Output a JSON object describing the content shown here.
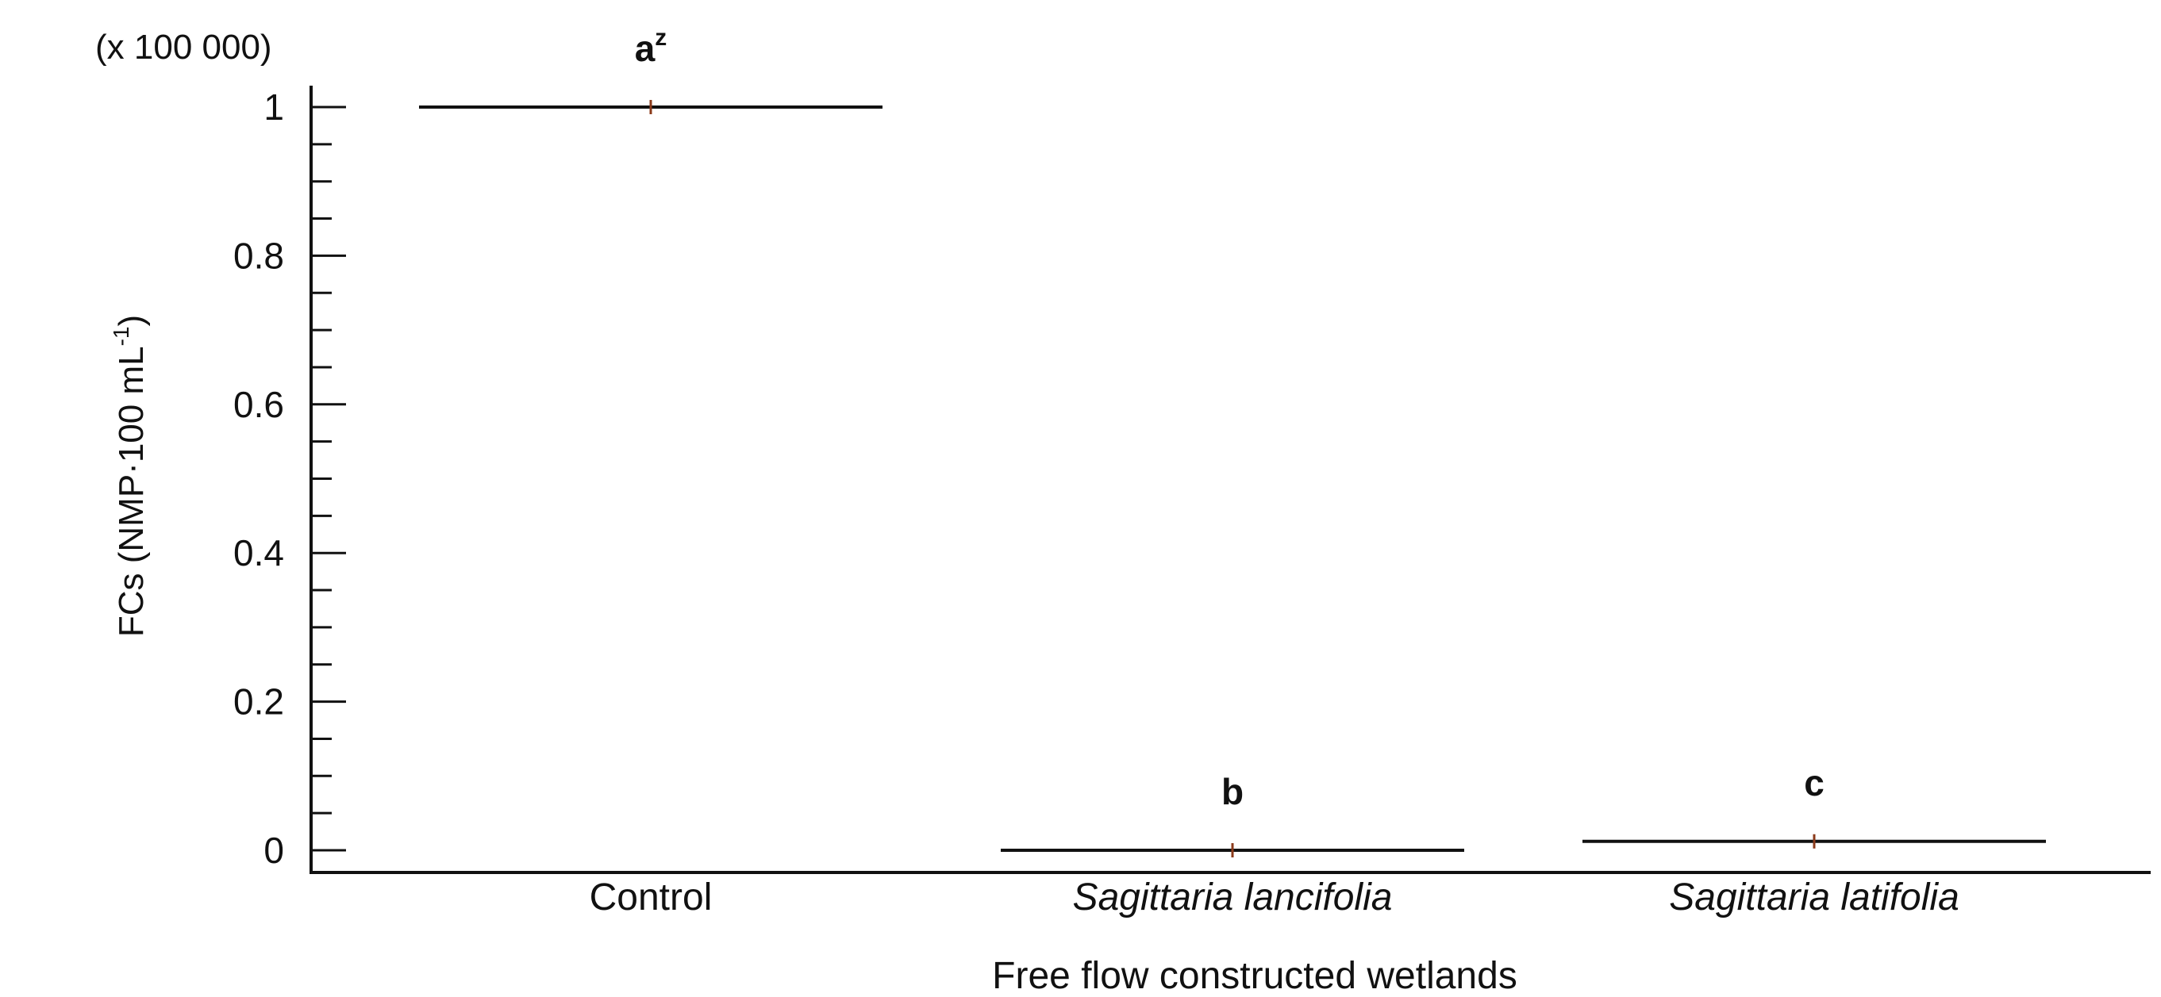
{
  "chart_data": {
    "type": "scatter",
    "multiplier_label": "(x 100 000)",
    "ylabel": "FCs (NMP·100 mL",
    "ylabel_sup": "-1",
    "ylabel_close": ")",
    "xlabel": "Free flow constructed wetlands",
    "ylim": [
      0,
      1
    ],
    "yticks": [
      0,
      0.2,
      0.4,
      0.6,
      0.8,
      1
    ],
    "ytick_labels": [
      "0",
      "0.2",
      "0.4",
      "0.6",
      "0.8",
      "1"
    ],
    "categories": [
      {
        "label": "Control",
        "italic": false
      },
      {
        "label": "Sagittaria lancifolia",
        "italic": true
      },
      {
        "label": "Sagittaria latifolia",
        "italic": true
      }
    ],
    "values": [
      1.0,
      0.0,
      0.012
    ],
    "letters": [
      {
        "text": "a",
        "sup": "z"
      },
      {
        "text": "b",
        "sup": ""
      },
      {
        "text": "c",
        "sup": ""
      }
    ],
    "colors": {
      "line": "#111111",
      "marker": "#8b3a1a",
      "axis": "#111111"
    }
  }
}
